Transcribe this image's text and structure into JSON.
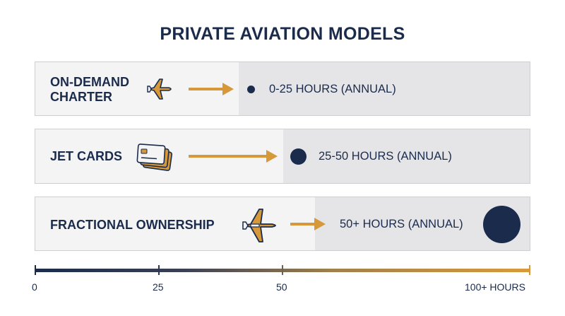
{
  "title": "PRIVATE AVIATION MODELS",
  "rows": [
    {
      "label": "ON-DEMAND\nCHARTER",
      "icon": "airplane-icon",
      "hours": "0-25 HOURS (ANNUAL)"
    },
    {
      "label": "JET CARDS",
      "icon": "card-stack-icon",
      "hours": "25-50 HOURS (ANNUAL)"
    },
    {
      "label": "FRACTIONAL OWNERSHIP",
      "icon": "airplane-icon",
      "hours": "50+ HOURS (ANNUAL)"
    }
  ],
  "scale": {
    "ticks": [
      "0",
      "25",
      "50",
      "100+ HOURS"
    ]
  },
  "colors": {
    "navy": "#1a2b4c",
    "gold": "#d69838",
    "panel_light": "#f4f4f5",
    "panel_dark": "#e5e5e7"
  }
}
